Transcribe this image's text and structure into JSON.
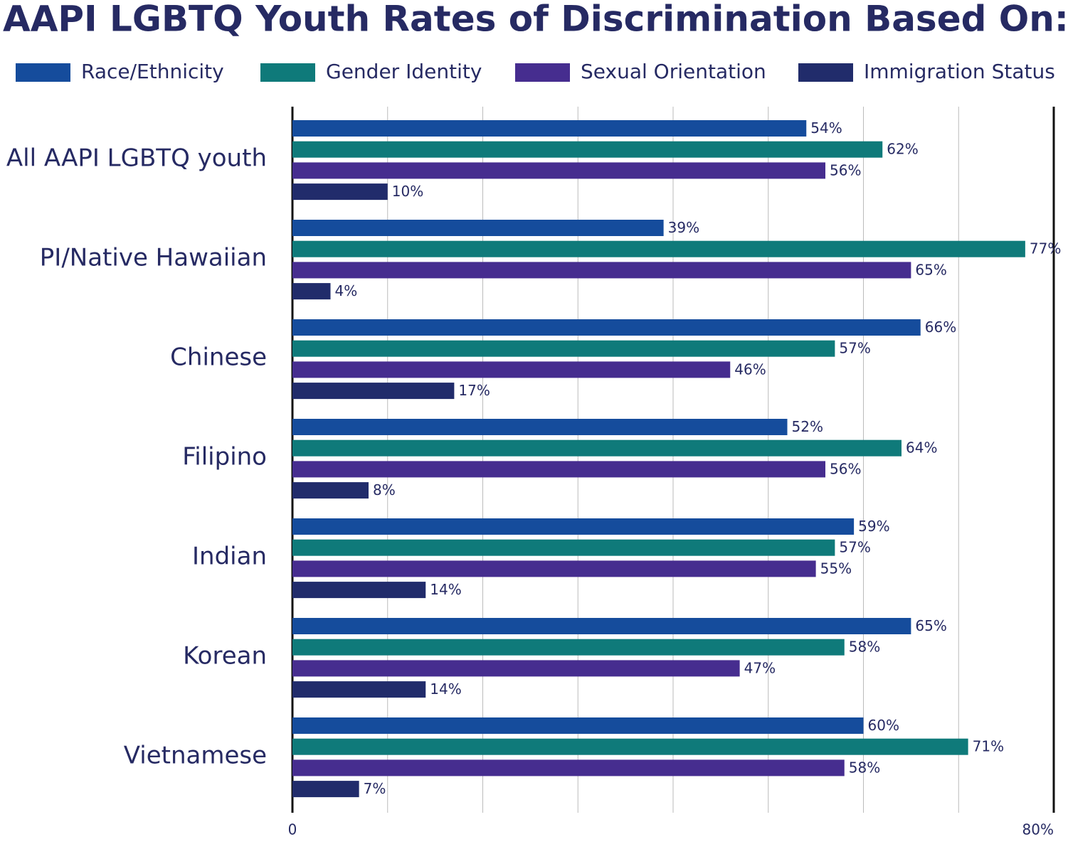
{
  "chart_data": {
    "type": "grouped-horizontal-bar",
    "title": "AAPI LGBTQ Youth Rates of Discrimination Based On:",
    "categories": [
      "All AAPI LGBTQ youth",
      "PI/Native Hawaiian",
      "Chinese",
      "Filipino",
      "Indian",
      "Korean",
      "Vietnamese"
    ],
    "series": [
      {
        "name": "Race/Ethnicity",
        "color": "#154c9c",
        "values": [
          54,
          39,
          66,
          52,
          59,
          65,
          60
        ],
        "value_labels": [
          "54%",
          "39%",
          "66%",
          "52%",
          "59%",
          "65%",
          "60%"
        ]
      },
      {
        "name": "Gender Identity",
        "color": "#0f7a7a",
        "values": [
          62,
          77,
          57,
          64,
          57,
          58,
          71
        ],
        "value_labels": [
          "62%",
          "77%",
          "57%",
          "64%",
          "57%",
          "58%",
          "71%"
        ]
      },
      {
        "name": "Sexual Orientation",
        "color": "#462d8f",
        "values": [
          56,
          65,
          46,
          56,
          55,
          47,
          58
        ],
        "value_labels": [
          "56%",
          "65%",
          "46%",
          "56%",
          "55%",
          "47%",
          "58%"
        ]
      },
      {
        "name": "Immigration Status",
        "color": "#212c6b",
        "values": [
          10,
          4,
          17,
          8,
          14,
          14,
          7
        ],
        "value_labels": [
          "10%",
          "4%",
          "17%",
          "8%",
          "14%",
          "14%",
          "7%"
        ]
      }
    ],
    "xlim": [
      0,
      80
    ],
    "xticks": [
      0,
      {
        "value": 10,
        "label": null
      },
      {
        "value": 20,
        "label": null
      },
      {
        "value": 30,
        "label": null
      },
      {
        "value": 40,
        "label": null
      },
      {
        "value": 50,
        "label": null
      },
      {
        "value": 60,
        "label": null
      },
      {
        "value": 70,
        "label": null
      },
      {
        "value": 80,
        "label": "80%"
      }
    ],
    "grid": true
  }
}
